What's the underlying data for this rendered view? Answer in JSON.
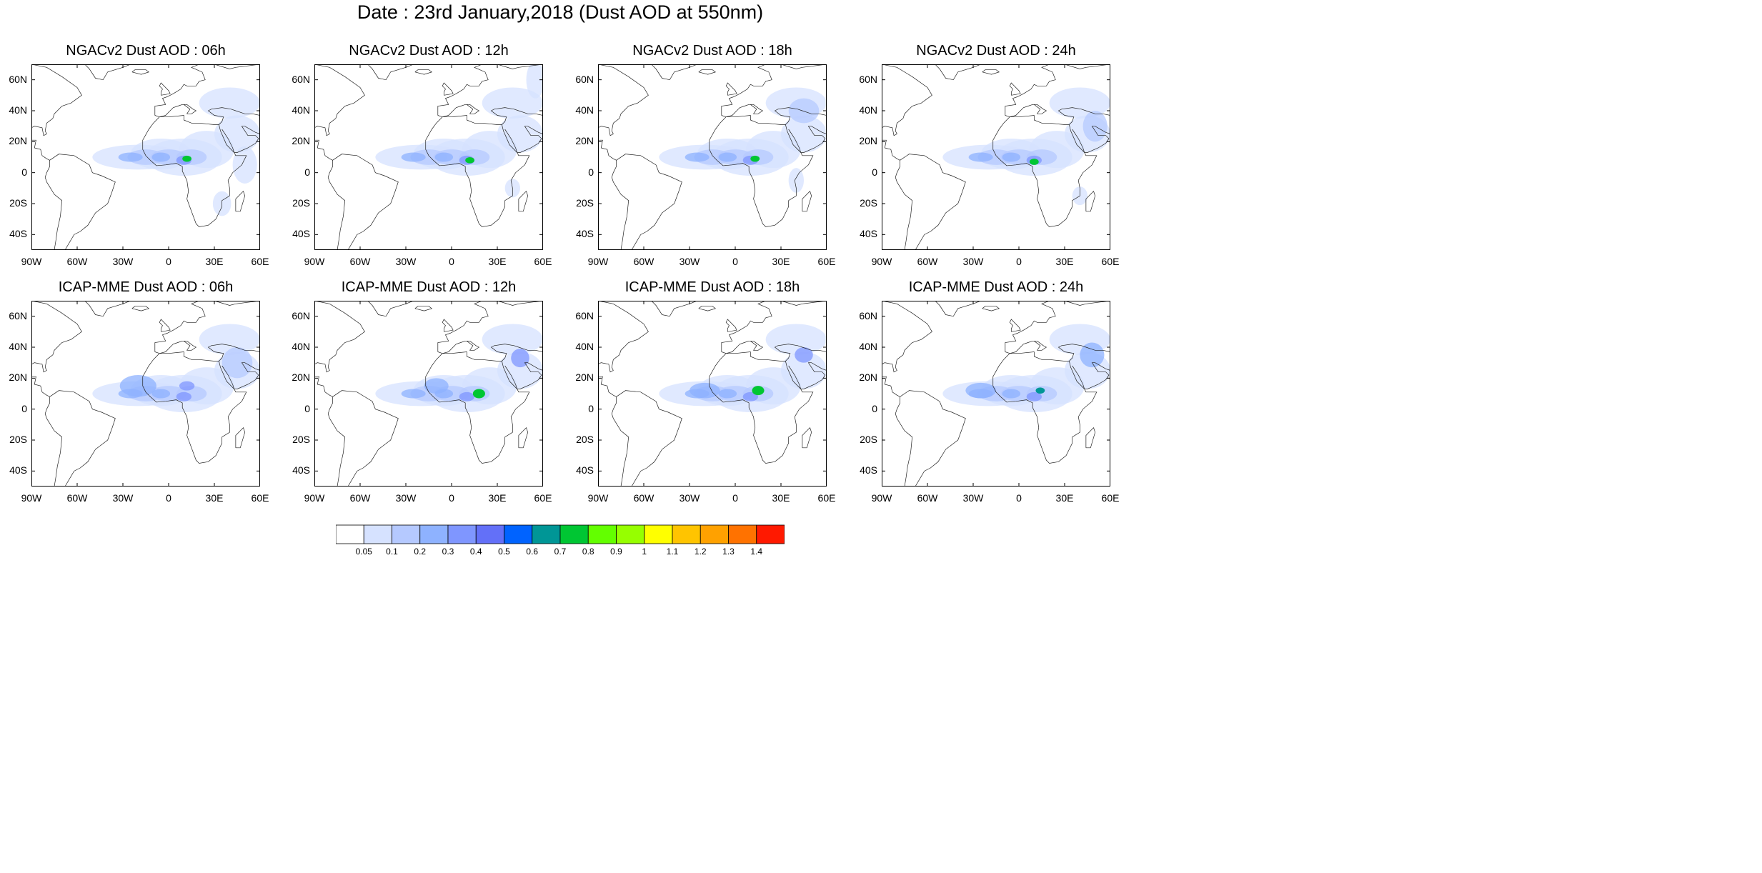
{
  "main_title": "Date : 23rd January,2018 (Dust AOD at 550nm)",
  "panels": [
    {
      "title": "NGACv2 Dust AOD : 06h"
    },
    {
      "title": "NGACv2 Dust AOD : 12h"
    },
    {
      "title": "NGACv2 Dust AOD : 18h"
    },
    {
      "title": "NGACv2 Dust AOD : 24h"
    },
    {
      "title": "ICAP-MME Dust AOD : 06h"
    },
    {
      "title": "ICAP-MME Dust AOD : 12h"
    },
    {
      "title": "ICAP-MME Dust AOD : 18h"
    },
    {
      "title": "ICAP-MME Dust AOD : 24h"
    }
  ],
  "axes": {
    "lon_ticks": [
      "90W",
      "60W",
      "30W",
      "0",
      "30E",
      "60E"
    ],
    "lat_ticks": [
      "60N",
      "40N",
      "20N",
      "0",
      "20S",
      "40S"
    ],
    "lon_values": [
      -90,
      -60,
      -30,
      0,
      30,
      60
    ],
    "lat_values": [
      60,
      40,
      20,
      0,
      -20,
      -40
    ],
    "lon_range": [
      -90,
      60
    ],
    "lat_range": [
      -50,
      70
    ]
  },
  "colorbar": {
    "labels": [
      "0.05",
      "0.1",
      "0.2",
      "0.3",
      "0.4",
      "0.5",
      "0.6",
      "0.7",
      "0.8",
      "0.9",
      "1",
      "1.1",
      "1.2",
      "1.3",
      "1.4"
    ],
    "colors": [
      "#ffffff",
      "#d6e2ff",
      "#b5c9ff",
      "#8eb2ff",
      "#7f96ff",
      "#6370f8",
      "#0063ff",
      "#009696",
      "#00c633",
      "#63ff00",
      "#96ff00",
      "#ffff00",
      "#ffc400",
      "#ffa100",
      "#ff7200",
      "#ff1900"
    ]
  }
}
